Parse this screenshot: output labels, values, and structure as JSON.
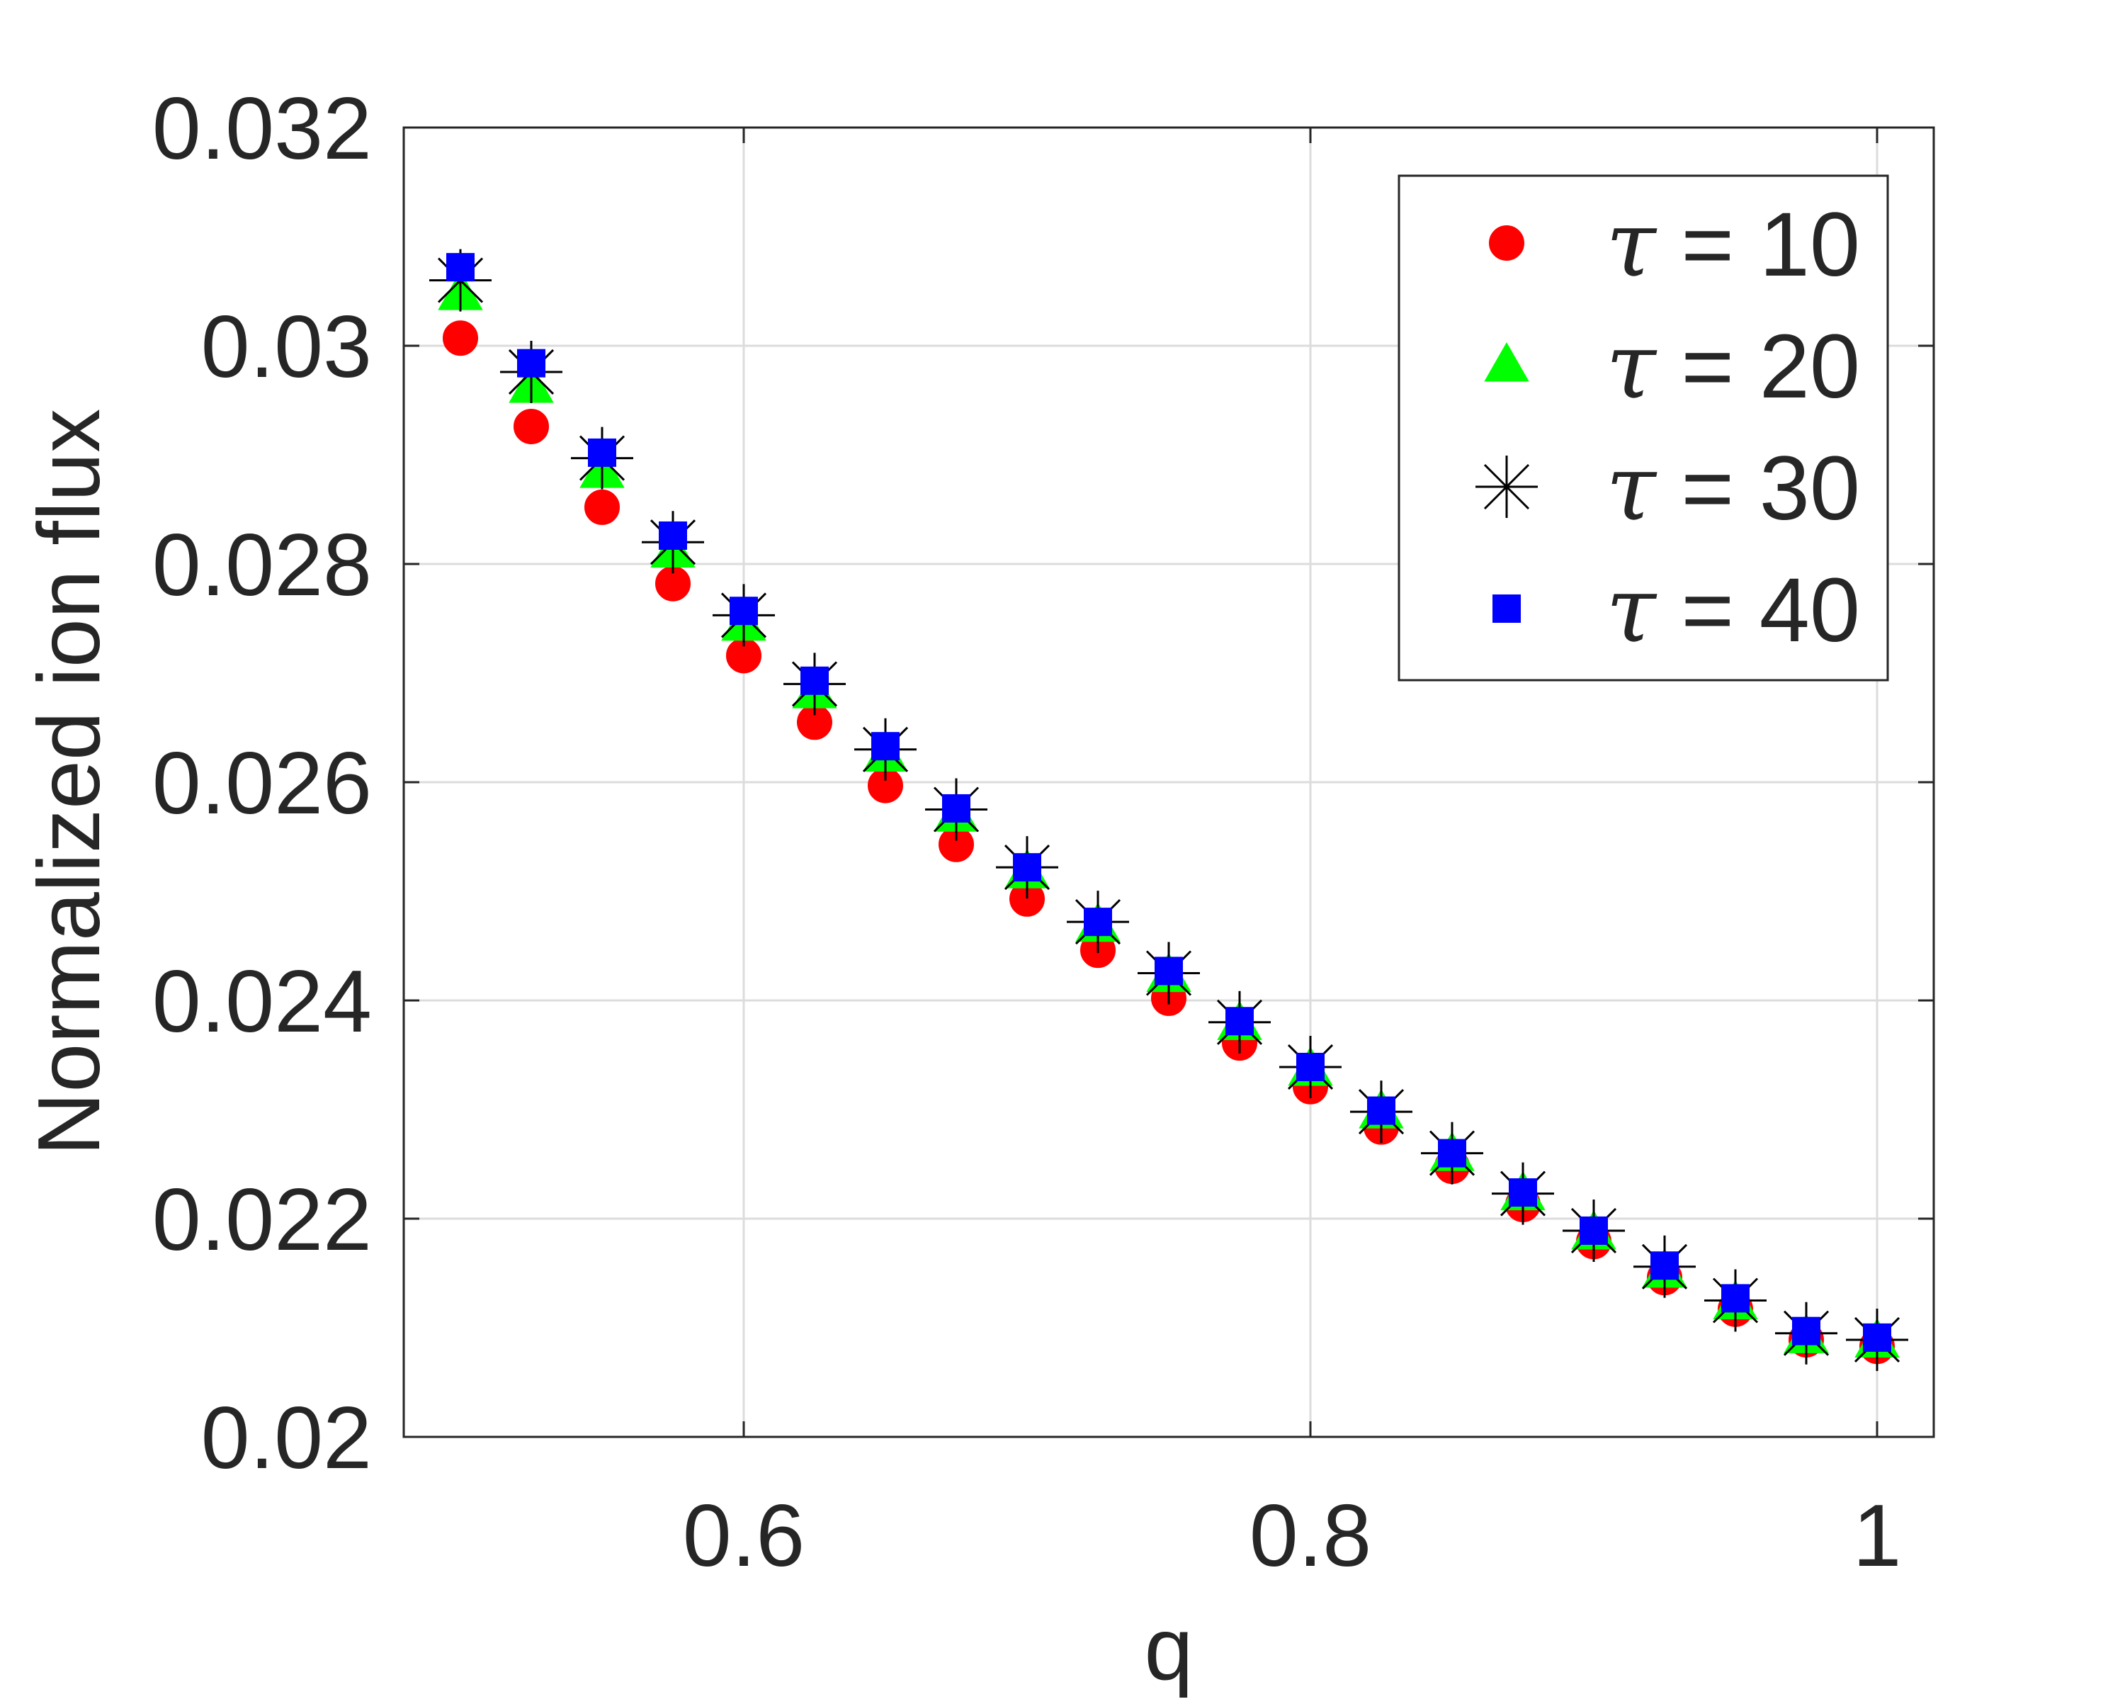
{
  "chart_data": {
    "type": "scatter",
    "title": "",
    "xlabel": "q",
    "ylabel": "Normalized ion flux",
    "xlim": [
      0.48,
      1.02
    ],
    "ylim": [
      0.02,
      0.032
    ],
    "xticks": [
      0.6,
      0.8,
      1
    ],
    "xtick_labels": [
      "0.6",
      "0.8",
      "1"
    ],
    "yticks": [
      0.02,
      0.022,
      0.024,
      0.026,
      0.028,
      0.03,
      0.032
    ],
    "ytick_labels": [
      "0.02",
      "0.022",
      "0.024",
      "0.026",
      "0.028",
      "0.03",
      "0.032"
    ],
    "grid": true,
    "legend_position": "top-right",
    "x": [
      0.5,
      0.525,
      0.55,
      0.575,
      0.6,
      0.625,
      0.65,
      0.675,
      0.7,
      0.725,
      0.75,
      0.775,
      0.8,
      0.825,
      0.85,
      0.875,
      0.9,
      0.925,
      0.95,
      0.975,
      1.0
    ],
    "series": [
      {
        "name": "τ = 10",
        "tau_symbol": "τ",
        "label_rest": " = 10",
        "marker": "circle",
        "color": "#ff0000",
        "values": [
          0.03007,
          0.02926,
          0.02852,
          0.02782,
          0.02716,
          0.02655,
          0.02597,
          0.02543,
          0.02493,
          0.02446,
          0.02402,
          0.02361,
          0.02321,
          0.02284,
          0.02248,
          0.02213,
          0.02179,
          0.02146,
          0.02117,
          0.02089,
          0.02083
        ]
      },
      {
        "name": "τ = 20",
        "tau_symbol": "τ",
        "label_rest": " = 20",
        "marker": "triangle",
        "color": "#00ff00",
        "values": [
          0.03048,
          0.02963,
          0.02885,
          0.02812,
          0.02745,
          0.02683,
          0.02625,
          0.0257,
          0.02518,
          0.02469,
          0.02423,
          0.02379,
          0.02337,
          0.02298,
          0.02259,
          0.02223,
          0.02187,
          0.02152,
          0.02123,
          0.02092,
          0.02088
        ]
      },
      {
        "name": "τ = 30",
        "tau_symbol": "τ",
        "label_rest": " = 30",
        "marker": "asterisk",
        "color": "#000000",
        "values": [
          0.0306,
          0.02976,
          0.02897,
          0.0282,
          0.02753,
          0.0269,
          0.0263,
          0.02575,
          0.02522,
          0.02472,
          0.02425,
          0.0238,
          0.02339,
          0.02298,
          0.0226,
          0.02223,
          0.02189,
          0.02156,
          0.02125,
          0.02095,
          0.02089
        ]
      },
      {
        "name": "τ = 40",
        "tau_symbol": "τ",
        "label_rest": " = 40",
        "marker": "square",
        "color": "#0000ff",
        "values": [
          0.03072,
          0.02984,
          0.02902,
          0.02826,
          0.02757,
          0.02693,
          0.02633,
          0.02576,
          0.02522,
          0.02472,
          0.02427,
          0.02381,
          0.02339,
          0.02299,
          0.0226,
          0.02224,
          0.02189,
          0.02157,
          0.02127,
          0.02097,
          0.02091
        ]
      }
    ]
  }
}
